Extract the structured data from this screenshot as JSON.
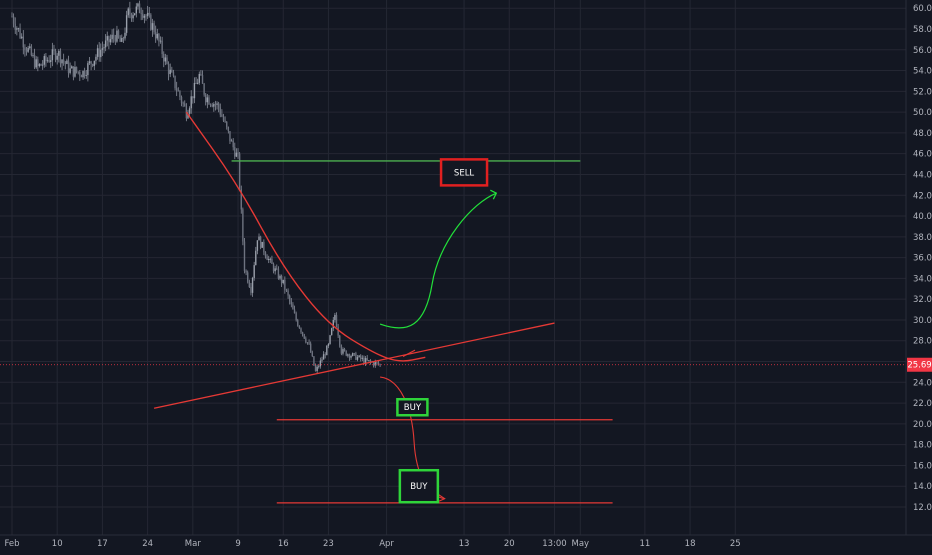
{
  "colors": {
    "background": "#131722",
    "grid": "#242733",
    "axis_text": "#b2b5be",
    "candle": "#8a8f9b",
    "trend_red": "#e53935",
    "level_green": "#4caf50",
    "arrow_green": "#22e03a",
    "box_green": "#2fd43a",
    "box_red": "#e02020",
    "price_tag": "#f23645",
    "price_line": "#f23645"
  },
  "chart_data": {
    "type": "candlestick",
    "title": "",
    "ylim": [
      11,
      60.5
    ],
    "y_ticks": [
      "12.00",
      "14.00",
      "16.00",
      "18.00",
      "20.00",
      "22.00",
      "24.00",
      "26.00",
      "28.00",
      "30.00",
      "32.00",
      "34.00",
      "36.00",
      "38.00",
      "40.00",
      "42.00",
      "44.00",
      "46.00",
      "48.00",
      "50.00",
      "52.00",
      "54.00",
      "56.00",
      "58.00",
      "60.00"
    ],
    "x_ticks": [
      "Feb",
      "10",
      "17",
      "24",
      "Mar",
      "9",
      "16",
      "23",
      "Apr",
      "13",
      "20",
      "13:00",
      "May",
      "11",
      "18",
      "25"
    ],
    "current_price": "25.69",
    "price_path": [
      [
        "2020-02-03",
        59.2
      ],
      [
        "2020-02-05",
        56.5
      ],
      [
        "2020-02-07",
        54.3
      ],
      [
        "2020-02-10",
        55.8
      ],
      [
        "2020-02-12",
        54.0
      ],
      [
        "2020-02-14",
        53.8
      ],
      [
        "2020-02-17",
        56.2
      ],
      [
        "2020-02-19",
        57.4
      ],
      [
        "2020-02-20",
        56.5
      ],
      [
        "2020-02-21",
        59.5
      ],
      [
        "2020-02-23",
        60.0
      ],
      [
        "2020-02-25",
        58.0
      ],
      [
        "2020-02-27",
        54.5
      ],
      [
        "2020-03-01",
        50.0
      ],
      [
        "2020-03-03",
        53.5
      ],
      [
        "2020-03-04",
        51.5
      ],
      [
        "2020-03-06",
        50.5
      ],
      [
        "2020-03-08",
        47.0
      ],
      [
        "2020-03-09",
        45.5
      ],
      [
        "2020-03-10",
        35.0
      ],
      [
        "2020-03-11",
        33.0
      ],
      [
        "2020-03-12",
        38.0
      ],
      [
        "2020-03-14",
        35.5
      ],
      [
        "2020-03-16",
        33.5
      ],
      [
        "2020-03-18",
        30.0
      ],
      [
        "2020-03-20",
        27.5
      ],
      [
        "2020-03-21",
        25.0
      ],
      [
        "2020-03-23",
        27.5
      ],
      [
        "2020-03-24",
        30.5
      ],
      [
        "2020-03-25",
        27.0
      ],
      [
        "2020-03-27",
        26.5
      ],
      [
        "2020-03-29",
        26.0
      ],
      [
        "2020-03-31",
        25.69
      ]
    ],
    "drawings": {
      "sell_level": {
        "x": [
          "2020-03-08",
          "2020-05-01"
        ],
        "y": 45.3
      },
      "buy_level_1": {
        "x": [
          "2020-03-15",
          "2020-05-06"
        ],
        "y": 20.4
      },
      "buy_level_2": {
        "x": [
          "2020-03-15",
          "2020-05-06"
        ],
        "y": 12.4
      },
      "support_trendline": {
        "x": [
          "2020-02-25",
          "2020-04-27"
        ],
        "y": [
          21.5,
          29.7
        ]
      },
      "resistance_curve": [
        [
          "2020-03-01",
          50.0
        ],
        [
          "2020-03-09",
          43.0
        ],
        [
          "2020-03-16",
          35.0
        ],
        [
          "2020-03-23",
          29.5
        ],
        [
          "2020-03-30",
          26.8
        ],
        [
          "2020-04-03",
          25.9
        ],
        [
          "2020-04-07",
          26.4
        ]
      ]
    },
    "annotations": [
      {
        "label": "SELL",
        "x": "2020-04-13",
        "y": 44.2
      },
      {
        "label": "BUY",
        "x": "2020-04-05",
        "y": 21.6
      },
      {
        "label": "BUY",
        "x": "2020-04-06",
        "y": 14.0
      }
    ]
  }
}
